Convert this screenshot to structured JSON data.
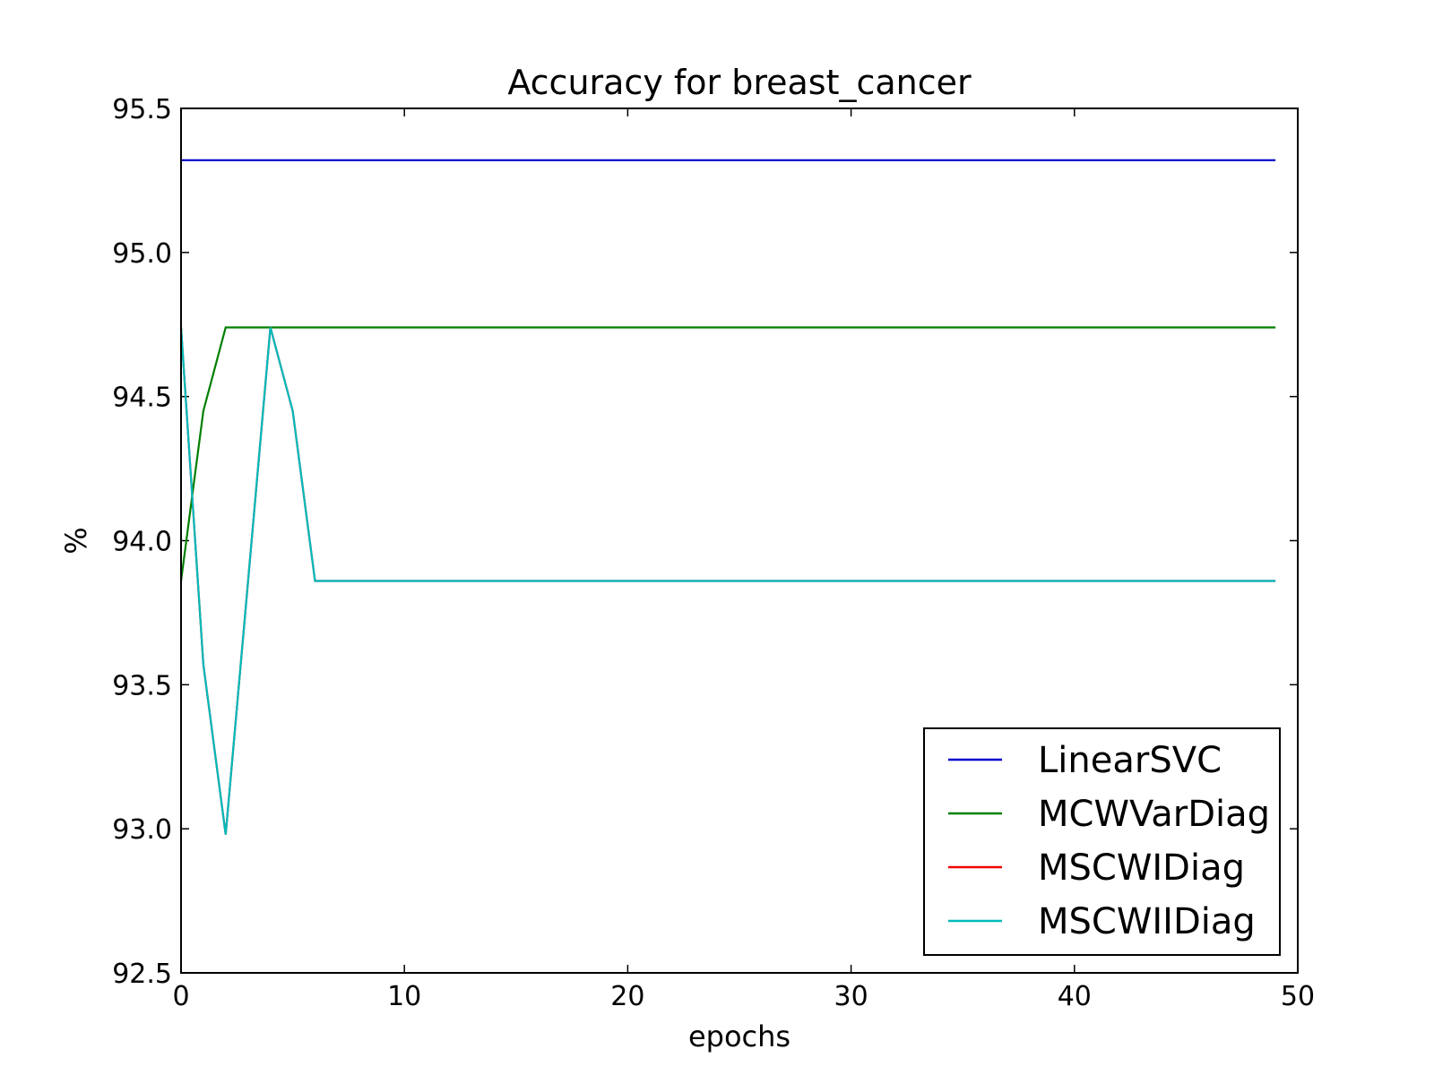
{
  "chart_data": {
    "type": "line",
    "title": "Accuracy for breast_cancer",
    "xlabel": "epochs",
    "ylabel": "%",
    "xlim": [
      0,
      50
    ],
    "ylim": [
      92.5,
      95.5
    ],
    "xticks": [
      0,
      10,
      20,
      30,
      40,
      50
    ],
    "yticks": [
      92.5,
      93.0,
      93.5,
      94.0,
      94.5,
      95.0,
      95.5
    ],
    "xtick_labels": [
      "0",
      "10",
      "20",
      "30",
      "40",
      "50"
    ],
    "ytick_labels": [
      "92.5",
      "93.0",
      "93.5",
      "94.0",
      "94.5",
      "95.0",
      "95.5"
    ],
    "grid": false,
    "legend_position": "lower-right",
    "series": [
      {
        "name": "LinearSVC",
        "color": "#0000cc",
        "x": [
          0,
          49
        ],
        "y": [
          95.32,
          95.32
        ]
      },
      {
        "name": "MCWVarDiag",
        "color": "#007f00",
        "x": [
          0,
          1,
          2,
          3,
          49
        ],
        "y": [
          93.86,
          94.45,
          94.74,
          94.74,
          94.74
        ]
      },
      {
        "name": "MSCWIDiag",
        "color": "#ee0000",
        "x": [
          0,
          1,
          2,
          3,
          4,
          5,
          6,
          49
        ],
        "y": [
          94.74,
          93.57,
          92.98,
          93.86,
          94.74,
          94.45,
          93.86,
          93.86
        ]
      },
      {
        "name": "MSCWIIDiag",
        "color": "#00bbbb",
        "x": [
          0,
          1,
          2,
          3,
          4,
          5,
          6,
          49
        ],
        "y": [
          94.74,
          93.57,
          92.98,
          93.86,
          94.74,
          94.45,
          93.86,
          93.86
        ]
      }
    ]
  }
}
